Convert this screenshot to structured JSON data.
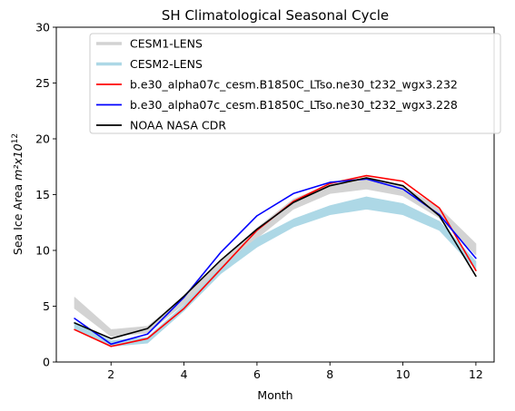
{
  "chart_data": {
    "type": "line",
    "title": "SH Climatological Seasonal Cycle",
    "xlabel": "Month",
    "ylabel": "Sea Ice Area m²x10¹²",
    "ylabel_prefix": "Sea Ice Area ",
    "ylabel_math": "m²x10",
    "ylabel_exp": "12",
    "xlim": [
      0.5,
      12.5
    ],
    "ylim": [
      0,
      30
    ],
    "xticks": [
      2,
      4,
      6,
      8,
      10,
      12
    ],
    "yticks": [
      0,
      5,
      10,
      15,
      20,
      25,
      30
    ],
    "legend_position": "top-right",
    "grid": false,
    "x": [
      1,
      2,
      3,
      4,
      5,
      6,
      7,
      8,
      9,
      10,
      11,
      12
    ],
    "bands": [
      {
        "name": "CESM1-LENS",
        "color": "#d3d3d3",
        "lower": [
          4.8,
          2.3,
          2.6,
          5.2,
          8.3,
          11.1,
          13.7,
          15.1,
          15.5,
          14.9,
          12.9,
          9.6
        ],
        "upper": [
          5.8,
          2.9,
          3.2,
          5.8,
          9.0,
          12.0,
          14.6,
          15.9,
          16.4,
          15.8,
          13.8,
          10.6
        ]
      },
      {
        "name": "CESM2-LENS",
        "color": "#add8e6",
        "lower": [
          3.0,
          1.4,
          1.7,
          4.6,
          7.9,
          10.3,
          12.1,
          13.2,
          13.7,
          13.2,
          11.8,
          8.3
        ],
        "upper": [
          3.6,
          1.9,
          2.2,
          5.1,
          8.5,
          11.1,
          12.8,
          14.0,
          14.8,
          14.2,
          12.6,
          9.0
        ]
      }
    ],
    "series": [
      {
        "name": "b.e30_alpha07c_cesm.B1850C_LTso.ne30_t232_wgx3.232",
        "color": "#ff0000",
        "values": [
          2.9,
          1.4,
          2.1,
          4.8,
          8.3,
          11.8,
          14.4,
          16.0,
          16.7,
          16.2,
          13.8,
          8.2
        ]
      },
      {
        "name": "b.e30_alpha07c_cesm.B1850C_LTso.ne30_t232_wgx3.228",
        "color": "#0000ff",
        "values": [
          3.9,
          1.6,
          2.5,
          5.8,
          9.8,
          13.1,
          15.1,
          16.1,
          16.4,
          15.5,
          13.2,
          9.3
        ]
      },
      {
        "name": "NOAA NASA CDR",
        "color": "#000000",
        "values": [
          3.5,
          2.1,
          3.0,
          5.9,
          9.1,
          11.9,
          14.3,
          15.8,
          16.5,
          15.8,
          13.1,
          7.7
        ]
      }
    ],
    "legend_order": [
      "CESM1-LENS",
      "CESM2-LENS",
      "b.e30_alpha07c_cesm.B1850C_LTso.ne30_t232_wgx3.232",
      "b.e30_alpha07c_cesm.B1850C_LTso.ne30_t232_wgx3.228",
      "NOAA NASA CDR"
    ]
  }
}
